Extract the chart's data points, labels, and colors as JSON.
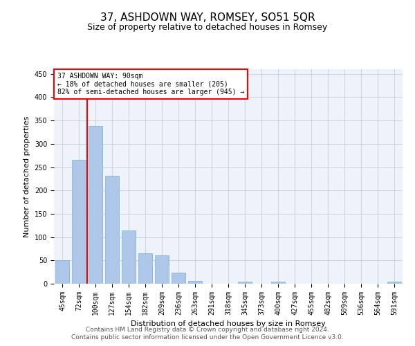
{
  "title": "37, ASHDOWN WAY, ROMSEY, SO51 5QR",
  "subtitle": "Size of property relative to detached houses in Romsey",
  "xlabel": "Distribution of detached houses by size in Romsey",
  "ylabel": "Number of detached properties",
  "footer_line1": "Contains HM Land Registry data © Crown copyright and database right 2024.",
  "footer_line2": "Contains public sector information licensed under the Open Government Licence v3.0.",
  "categories": [
    "45sqm",
    "72sqm",
    "100sqm",
    "127sqm",
    "154sqm",
    "182sqm",
    "209sqm",
    "236sqm",
    "263sqm",
    "291sqm",
    "318sqm",
    "345sqm",
    "373sqm",
    "400sqm",
    "427sqm",
    "455sqm",
    "482sqm",
    "509sqm",
    "536sqm",
    "564sqm",
    "591sqm"
  ],
  "values": [
    50,
    265,
    338,
    232,
    114,
    65,
    61,
    24,
    6,
    0,
    0,
    4,
    0,
    4,
    0,
    0,
    0,
    0,
    0,
    0,
    4
  ],
  "bar_color": "#aec6e8",
  "bar_edge_color": "#7ab0d4",
  "property_line_x": 1.5,
  "annotation_text_line1": "37 ASHDOWN WAY: 90sqm",
  "annotation_text_line2": "← 18% of detached houses are smaller (205)",
  "annotation_text_line3": "82% of semi-detached houses are larger (945) →",
  "annotation_box_color": "white",
  "annotation_box_edge_color": "red",
  "property_line_color": "red",
  "ylim": [
    0,
    460
  ],
  "yticks": [
    0,
    50,
    100,
    150,
    200,
    250,
    300,
    350,
    400,
    450
  ],
  "grid_color": "#cccccc",
  "bg_color": "#eef2fb",
  "title_fontsize": 11,
  "subtitle_fontsize": 9,
  "axis_label_fontsize": 8,
  "tick_fontsize": 7,
  "annotation_fontsize": 7,
  "footer_fontsize": 6.5
}
